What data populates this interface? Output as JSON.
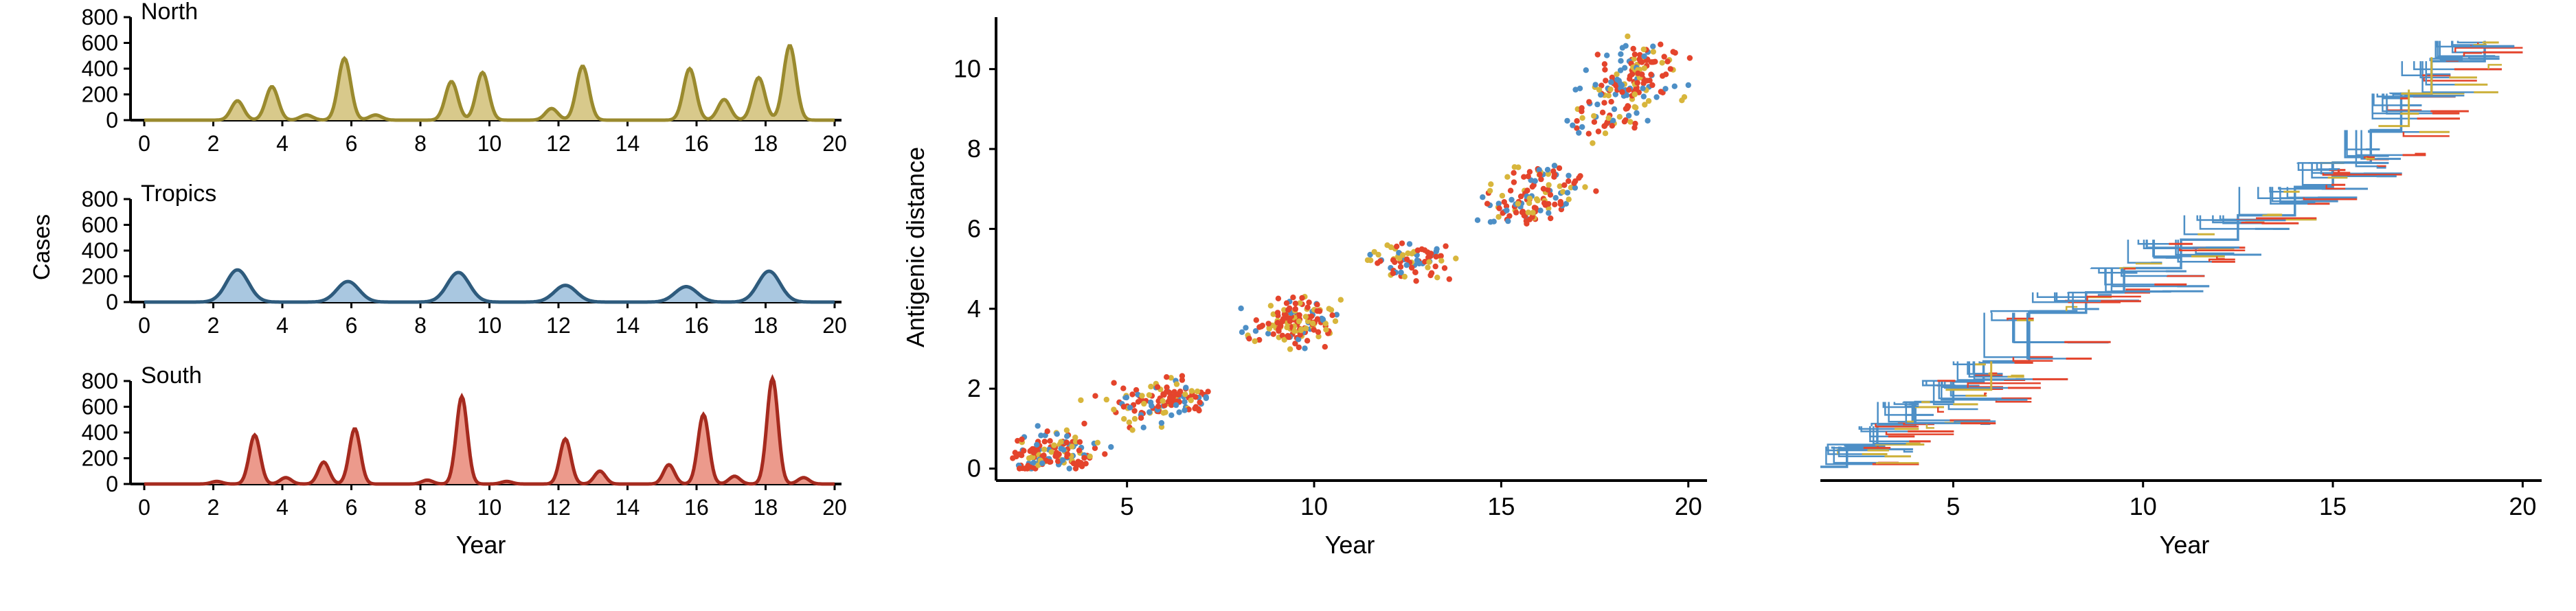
{
  "colors": {
    "north": "#9a8a2e",
    "north_fill": "#d8c98b",
    "tropics": "#2e5b7d",
    "tropics_fill": "#a9c7e0",
    "south": "#a52a1e",
    "south_fill": "#ec9a8c",
    "scatter_blue": "#4d8fc6",
    "scatter_red": "#e4442c",
    "scatter_yellow": "#d8b63c",
    "tree_blue": "#4d8fc6",
    "tree_red": "#e4442c",
    "tree_yellow": "#cdb13a"
  },
  "chart_data": [
    {
      "type": "area",
      "panel": "North",
      "title": "North",
      "ylabel": "Cases",
      "xlabel": "",
      "xlim": [
        0,
        20
      ],
      "ylim": [
        0,
        800
      ],
      "xticks": [
        "0",
        "2",
        "4",
        "6",
        "8",
        "10",
        "12",
        "14",
        "16",
        "18",
        "20"
      ],
      "yticks": [
        "0",
        "200",
        "400",
        "600",
        "800"
      ],
      "peaks": [
        {
          "x": 2.7,
          "y": 150
        },
        {
          "x": 3.7,
          "y": 260
        },
        {
          "x": 4.7,
          "y": 40
        },
        {
          "x": 5.8,
          "y": 480
        },
        {
          "x": 6.7,
          "y": 40
        },
        {
          "x": 8.9,
          "y": 300
        },
        {
          "x": 9.8,
          "y": 370
        },
        {
          "x": 11.8,
          "y": 90
        },
        {
          "x": 12.7,
          "y": 420
        },
        {
          "x": 15.8,
          "y": 400
        },
        {
          "x": 16.8,
          "y": 160
        },
        {
          "x": 17.8,
          "y": 330
        },
        {
          "x": 18.7,
          "y": 580
        }
      ]
    },
    {
      "type": "area",
      "panel": "Tropics",
      "title": "Tropics",
      "ylabel": "Cases",
      "xlabel": "",
      "xlim": [
        0,
        20
      ],
      "ylim": [
        0,
        800
      ],
      "xticks": [
        "0",
        "2",
        "4",
        "6",
        "8",
        "10",
        "12",
        "14",
        "16",
        "18",
        "20"
      ],
      "yticks": [
        "0",
        "200",
        "400",
        "600",
        "800"
      ],
      "peaks": [
        {
          "x": 2.7,
          "y": 250
        },
        {
          "x": 5.9,
          "y": 160
        },
        {
          "x": 9.1,
          "y": 230
        },
        {
          "x": 12.2,
          "y": 130
        },
        {
          "x": 15.7,
          "y": 120
        },
        {
          "x": 18.1,
          "y": 240
        }
      ]
    },
    {
      "type": "area",
      "panel": "South",
      "title": "South",
      "ylabel": "Cases",
      "xlabel": "Year",
      "xlim": [
        0,
        20
      ],
      "ylim": [
        0,
        800
      ],
      "xticks": [
        "0",
        "2",
        "4",
        "6",
        "8",
        "10",
        "12",
        "14",
        "16",
        "18",
        "20"
      ],
      "yticks": [
        "0",
        "200",
        "400",
        "600",
        "800"
      ],
      "peaks": [
        {
          "x": 2.1,
          "y": 20
        },
        {
          "x": 3.2,
          "y": 380
        },
        {
          "x": 4.1,
          "y": 50
        },
        {
          "x": 5.2,
          "y": 170
        },
        {
          "x": 6.1,
          "y": 430
        },
        {
          "x": 8.2,
          "y": 30
        },
        {
          "x": 9.2,
          "y": 680
        },
        {
          "x": 10.5,
          "y": 20
        },
        {
          "x": 12.2,
          "y": 350
        },
        {
          "x": 13.2,
          "y": 100
        },
        {
          "x": 15.2,
          "y": 150
        },
        {
          "x": 16.2,
          "y": 540
        },
        {
          "x": 17.1,
          "y": 60
        },
        {
          "x": 18.2,
          "y": 820
        },
        {
          "x": 19.1,
          "y": 50
        }
      ]
    },
    {
      "type": "scatter",
      "panel": "antigenic",
      "xlabel": "Year",
      "ylabel": "Antigenic distance",
      "xlim": [
        1.5,
        20.5
      ],
      "ylim": [
        -0.3,
        11.3
      ],
      "xticks": [
        "5",
        "10",
        "15",
        "20"
      ],
      "yticks": [
        "0",
        "2",
        "4",
        "6",
        "8",
        "10"
      ],
      "clusters": [
        {
          "x": 2.6,
          "y": 0.3,
          "n": 70
        },
        {
          "x": 3.3,
          "y": 0.5,
          "n": 70
        },
        {
          "x": 5.6,
          "y": 1.5,
          "n": 60
        },
        {
          "x": 6.3,
          "y": 1.8,
          "n": 70
        },
        {
          "x": 9.2,
          "y": 3.5,
          "n": 80
        },
        {
          "x": 9.8,
          "y": 3.8,
          "n": 70
        },
        {
          "x": 12.5,
          "y": 5.2,
          "n": 80
        },
        {
          "x": 15.6,
          "y": 6.6,
          "n": 80
        },
        {
          "x": 16.3,
          "y": 7.2,
          "n": 50
        },
        {
          "x": 17.7,
          "y": 8.7,
          "n": 40
        },
        {
          "x": 18.4,
          "y": 9.5,
          "n": 80
        },
        {
          "x": 18.6,
          "y": 10.2,
          "n": 70
        }
      ]
    },
    {
      "type": "tree",
      "panel": "phylogeny",
      "xlabel": "Year",
      "xlim": [
        1.5,
        20.5
      ],
      "xticks": [
        "5",
        "10",
        "15",
        "20"
      ],
      "trunk": [
        {
          "x": 1.5,
          "y": 0.0
        },
        {
          "x": 2.2,
          "y": 0.5
        },
        {
          "x": 3.0,
          "y": 1.0
        },
        {
          "x": 4.0,
          "y": 1.6
        },
        {
          "x": 5.0,
          "y": 2.1
        },
        {
          "x": 5.8,
          "y": 2.6
        },
        {
          "x": 7.0,
          "y": 3.8
        },
        {
          "x": 8.5,
          "y": 4.3
        },
        {
          "x": 9.5,
          "y": 4.9
        },
        {
          "x": 11.0,
          "y": 5.6
        },
        {
          "x": 12.5,
          "y": 6.2
        },
        {
          "x": 14.0,
          "y": 6.9
        },
        {
          "x": 15.0,
          "y": 7.5
        },
        {
          "x": 16.0,
          "y": 8.3
        },
        {
          "x": 16.8,
          "y": 9.2
        },
        {
          "x": 17.6,
          "y": 10.0
        },
        {
          "x": 19.0,
          "y": 10.5
        }
      ]
    }
  ]
}
